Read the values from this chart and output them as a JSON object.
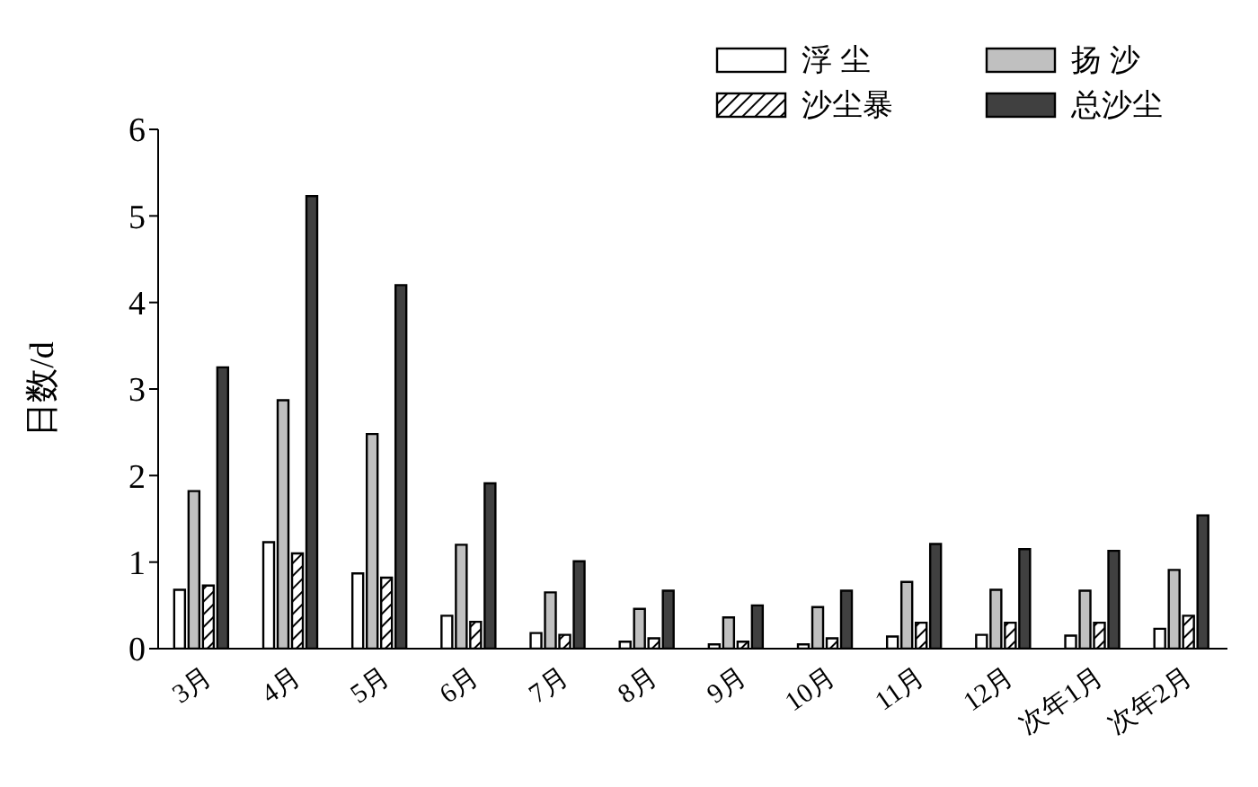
{
  "chart_data": {
    "type": "bar",
    "ylabel": "日数/d",
    "categories": [
      "3月",
      "4月",
      "5月",
      "6月",
      "7月",
      "8月",
      "9月",
      "10月",
      "11月",
      "12月",
      "次年1月",
      "次年2月"
    ],
    "series": [
      {
        "name": "浮 尘",
        "color": "#ffffff",
        "values": [
          0.68,
          1.23,
          0.87,
          0.38,
          0.18,
          0.08,
          0.05,
          0.05,
          0.14,
          0.16,
          0.15,
          0.23
        ]
      },
      {
        "name": "扬 沙",
        "color": "#c0c0c0",
        "values": [
          1.82,
          2.87,
          2.48,
          1.2,
          0.65,
          0.46,
          0.36,
          0.48,
          0.77,
          0.68,
          0.67,
          0.91
        ]
      },
      {
        "name": "沙尘暴",
        "color": "#000000",
        "values": [
          0.73,
          1.1,
          0.82,
          0.31,
          0.16,
          0.12,
          0.08,
          0.12,
          0.3,
          0.3,
          0.3,
          0.38
        ]
      },
      {
        "name": "总沙尘",
        "color": "#404040",
        "values": [
          3.25,
          5.23,
          4.2,
          1.91,
          1.01,
          0.67,
          0.5,
          0.67,
          1.21,
          1.15,
          1.13,
          1.54
        ]
      }
    ],
    "ylim": [
      0,
      6
    ],
    "yticks": [
      0,
      1,
      2,
      3,
      4,
      5,
      6
    ],
    "grid": false,
    "legend": "top right"
  }
}
